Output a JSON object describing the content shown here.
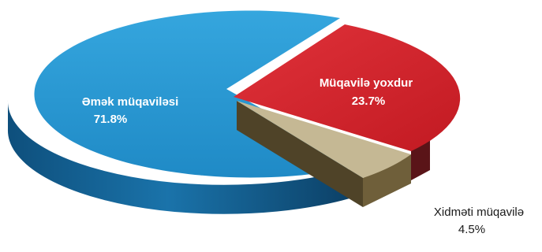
{
  "chart_data": {
    "type": "pie",
    "style": "3d",
    "title": "",
    "slices": [
      {
        "label": "Əmək müqaviləsi",
        "value": 71.8,
        "value_label": "71.8%",
        "color": "#2A96D2",
        "label_color": "#ffffff"
      },
      {
        "label": "Müqavilə yoxdur",
        "value": 23.7,
        "value_label": "23.7%",
        "color": "#D4232B",
        "label_color": "#ffffff"
      },
      {
        "label": "Xidməti müqavilə",
        "value": 4.5,
        "value_label": "4.5%",
        "color": "#C5B894",
        "label_color": "#1a1a1a"
      }
    ]
  }
}
